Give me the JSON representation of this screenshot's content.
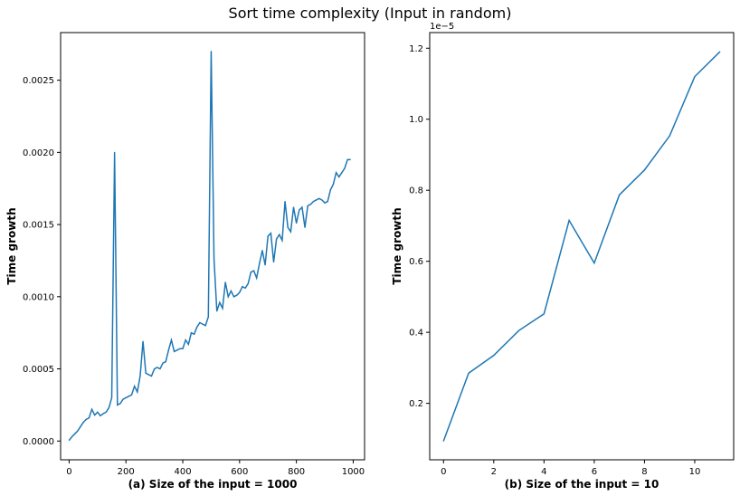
{
  "figure": {
    "title": "Sort time complexity (Input in random)"
  },
  "colors": {
    "series": "#1f77b4",
    "axes": "#000000",
    "background": "#ffffff"
  },
  "chart_data": [
    {
      "type": "line",
      "title": "",
      "xlabel": "(a) Size of the input = 1000",
      "ylabel": "Time growth",
      "xlim": [
        -30,
        1040
      ],
      "ylim": [
        -0.00013,
        0.00283
      ],
      "xticks": [
        0,
        200,
        400,
        600,
        800,
        1000
      ],
      "xtick_labels": [
        "0",
        "200",
        "400",
        "600",
        "800",
        "1000"
      ],
      "yticks": [
        0,
        0.0005,
        0.001,
        0.0015,
        0.002,
        0.0025
      ],
      "ytick_labels": [
        "0.0000",
        "0.0005",
        "0.0010",
        "0.0015",
        "0.0020",
        "0.0025"
      ],
      "offset_text": "",
      "series": [
        {
          "name": "Time growth",
          "x": [
            0,
            10,
            20,
            30,
            40,
            50,
            60,
            70,
            80,
            90,
            100,
            110,
            120,
            130,
            140,
            150,
            160,
            170,
            180,
            190,
            200,
            210,
            220,
            230,
            240,
            250,
            260,
            270,
            280,
            290,
            300,
            310,
            320,
            330,
            340,
            350,
            360,
            370,
            380,
            390,
            400,
            410,
            420,
            430,
            440,
            450,
            460,
            470,
            480,
            490,
            500,
            510,
            520,
            530,
            540,
            550,
            560,
            570,
            580,
            590,
            600,
            610,
            620,
            630,
            640,
            650,
            660,
            670,
            680,
            690,
            700,
            710,
            720,
            730,
            740,
            750,
            760,
            770,
            780,
            790,
            800,
            810,
            820,
            830,
            840,
            850,
            860,
            870,
            880,
            890,
            900,
            910,
            920,
            930,
            940,
            950,
            960,
            970,
            980,
            990
          ],
          "values": [
            5e-06,
            3e-05,
            5e-05,
            7e-05,
            0.0001,
            0.00013,
            0.00015,
            0.00016,
            0.00022,
            0.00018,
            0.0002,
            0.000175,
            0.00019,
            0.0002,
            0.00023,
            0.0003,
            0.002,
            0.00025,
            0.00026,
            0.00029,
            0.0003,
            0.00031,
            0.00032,
            0.00038,
            0.00034,
            0.00045,
            0.00069,
            0.00047,
            0.00046,
            0.00045,
            0.0005,
            0.00051,
            0.0005,
            0.00054,
            0.00055,
            0.00063,
            0.0007,
            0.00062,
            0.00063,
            0.00064,
            0.00064,
            0.0007,
            0.00067,
            0.00075,
            0.00074,
            0.00079,
            0.00082,
            0.00081,
            0.0008,
            0.00086,
            0.0027,
            0.00126,
            0.0009,
            0.00096,
            0.00092,
            0.0011,
            0.001,
            0.00104,
            0.001,
            0.00101,
            0.00103,
            0.00107,
            0.00106,
            0.00109,
            0.00117,
            0.00118,
            0.00113,
            0.00123,
            0.00132,
            0.00122,
            0.00142,
            0.00144,
            0.00124,
            0.0014,
            0.00143,
            0.00139,
            0.00166,
            0.00148,
            0.00145,
            0.00162,
            0.00151,
            0.0016,
            0.00162,
            0.00148,
            0.00163,
            0.00164,
            0.00166,
            0.00167,
            0.00168,
            0.00167,
            0.00165,
            0.00166,
            0.00174,
            0.00178,
            0.00186,
            0.00183,
            0.00186,
            0.00189,
            0.00195,
            0.00195
          ]
        }
      ]
    },
    {
      "type": "line",
      "title": "",
      "xlabel": "(b) Size of the input = 10",
      "ylabel": "Time growth",
      "xlim": [
        -0.55,
        11.55
      ],
      "ylim": [
        4.1e-07,
        1.244e-05
      ],
      "xticks": [
        0,
        2,
        4,
        6,
        8,
        10
      ],
      "xtick_labels": [
        "0",
        "2",
        "4",
        "6",
        "8",
        "10"
      ],
      "yticks": [
        2e-06,
        4e-06,
        6e-06,
        8e-06,
        1e-05,
        1.2e-05
      ],
      "ytick_labels": [
        "0.2",
        "0.4",
        "0.6",
        "0.8",
        "1.0",
        "1.2"
      ],
      "offset_text": "1e−5",
      "series": [
        {
          "name": "Time growth",
          "x": [
            0,
            1,
            2,
            3,
            4,
            5,
            6,
            7,
            8,
            9,
            10,
            11
          ],
          "values": [
            9.4e-07,
            2.85e-06,
            3.35e-06,
            4.05e-06,
            4.52e-06,
            7.15e-06,
            5.95e-06,
            7.87e-06,
            8.57e-06,
            9.53e-06,
            1.12e-05,
            1.19e-05
          ]
        }
      ]
    }
  ]
}
